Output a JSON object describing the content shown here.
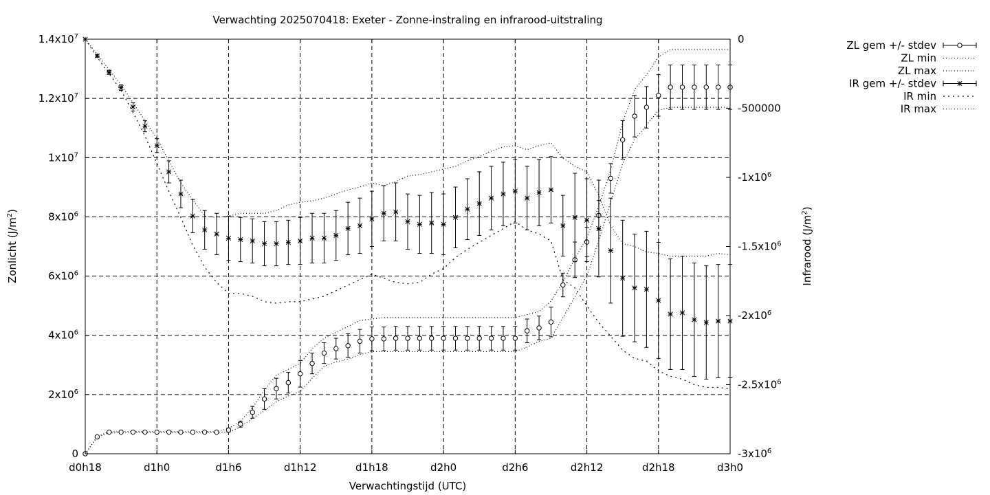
{
  "chart_data": {
    "type": "scatter",
    "title": "Verwachting 2025070418: Exeter - Zonne-instraling en infrarood-uitstraling",
    "xlabel": "Verwachtingstijd (UTC)",
    "ylabel": "Zonlicht (J/m²)",
    "ylabel_base": "Zonlicht (J/m",
    "ylabel_sup": "2",
    "ylabel_end": ")",
    "y2label": "Infrarood (J/m²)",
    "y2label_base": "Infrarood (J/m",
    "y2label_sup": "2",
    "y2label_end": ")",
    "x_unit": "hours since forecast start (d0h18)",
    "xlim": [
      18,
      72
    ],
    "ylim": [
      0,
      14000000
    ],
    "y2lim": [
      -3000000,
      0
    ],
    "grid": true,
    "legend_position": "outside top-right",
    "x_ticks": [
      {
        "value": 18,
        "label": "d0h18"
      },
      {
        "value": 24,
        "label": "d1h0"
      },
      {
        "value": 30,
        "label": "d1h6"
      },
      {
        "value": 36,
        "label": "d1h12"
      },
      {
        "value": 42,
        "label": "d1h18"
      },
      {
        "value": 48,
        "label": "d2h0"
      },
      {
        "value": 54,
        "label": "d2h6"
      },
      {
        "value": 60,
        "label": "d2h12"
      },
      {
        "value": 66,
        "label": "d2h18"
      },
      {
        "value": 72,
        "label": "d3h0"
      }
    ],
    "y_ticks": [
      {
        "value": 0,
        "base": "0",
        "exp": ""
      },
      {
        "value": 2000000,
        "base": "2x10",
        "exp": "6"
      },
      {
        "value": 4000000,
        "base": "4x10",
        "exp": "6"
      },
      {
        "value": 6000000,
        "base": "6x10",
        "exp": "6"
      },
      {
        "value": 8000000,
        "base": "8x10",
        "exp": "6"
      },
      {
        "value": 10000000,
        "base": "1x10",
        "exp": "7"
      },
      {
        "value": 12000000,
        "base": "1.2x10",
        "exp": "7"
      },
      {
        "value": 14000000,
        "base": "1.4x10",
        "exp": "7"
      }
    ],
    "y2_ticks": [
      {
        "value": 0,
        "base": "0",
        "exp": ""
      },
      {
        "value": -500000,
        "base": "-500000",
        "exp": ""
      },
      {
        "value": -1000000,
        "base": "-1x10",
        "exp": "6"
      },
      {
        "value": -1500000,
        "base": "-1.5x10",
        "exp": "6"
      },
      {
        "value": -2000000,
        "base": "-2x10",
        "exp": "6"
      },
      {
        "value": -2500000,
        "base": "-2.5x10",
        "exp": "6"
      },
      {
        "value": -3000000,
        "base": "-3x10",
        "exp": "6"
      }
    ],
    "legend": [
      {
        "label": "ZL gem +/- stdev",
        "style": "errorbar-circle"
      },
      {
        "label": "ZL min",
        "style": "dotted"
      },
      {
        "label": "ZL max",
        "style": "dotted"
      },
      {
        "label": "IR gem +/- stdev",
        "style": "errorbar-star"
      },
      {
        "label": "IR min",
        "style": "dotted-sparse"
      },
      {
        "label": "IR max",
        "style": "dotted"
      }
    ],
    "x": [
      18,
      19,
      20,
      21,
      22,
      23,
      24,
      25,
      26,
      27,
      28,
      29,
      30,
      31,
      32,
      33,
      34,
      35,
      36,
      37,
      38,
      39,
      40,
      41,
      42,
      43,
      44,
      45,
      46,
      47,
      48,
      49,
      50,
      51,
      52,
      53,
      54,
      55,
      56,
      57,
      58,
      59,
      60,
      61,
      62,
      63,
      64,
      65,
      66,
      67,
      68,
      69,
      70,
      71,
      72
    ],
    "series": [
      {
        "name": "ZL gem +/- stdev",
        "axis": "y",
        "marker": "circle",
        "values": [
          0,
          570000,
          730000,
          730000,
          730000,
          730000,
          730000,
          730000,
          730000,
          730000,
          730000,
          730000,
          800000,
          1000000,
          1400000,
          1850000,
          2200000,
          2400000,
          2700000,
          3050000,
          3400000,
          3550000,
          3650000,
          3800000,
          3880000,
          3880000,
          3900000,
          3900000,
          3900000,
          3900000,
          3900000,
          3900000,
          3900000,
          3900000,
          3900000,
          3900000,
          3900000,
          4150000,
          4250000,
          4450000,
          5700000,
          6550000,
          7150000,
          8050000,
          9300000,
          10600000,
          11400000,
          11700000,
          12100000,
          12380000,
          12380000,
          12380000,
          12380000,
          12380000,
          12380000
        ],
        "stdev": [
          0,
          20000,
          20000,
          20000,
          20000,
          20000,
          20000,
          20000,
          20000,
          20000,
          20000,
          20000,
          70000,
          100000,
          200000,
          350000,
          350000,
          350000,
          450000,
          350000,
          350000,
          350000,
          400000,
          400000,
          400000,
          400000,
          400000,
          400000,
          400000,
          400000,
          400000,
          400000,
          400000,
          400000,
          400000,
          400000,
          400000,
          400000,
          400000,
          500000,
          400000,
          600000,
          500000,
          500000,
          500000,
          650000,
          700000,
          700000,
          700000,
          750000,
          750000,
          750000,
          750000,
          750000,
          750000
        ]
      },
      {
        "name": "ZL min",
        "axis": "y",
        "style": "dotted",
        "values": [
          0,
          560000,
          710000,
          710000,
          710000,
          710000,
          710000,
          710000,
          710000,
          710000,
          710000,
          710000,
          730000,
          900000,
          1200000,
          1450000,
          1750000,
          1950000,
          2100000,
          2550000,
          2950000,
          3100000,
          3200000,
          3350000,
          3450000,
          3450000,
          3450000,
          3450000,
          3450000,
          3450000,
          3450000,
          3450000,
          3450000,
          3450000,
          3450000,
          3450000,
          3450000,
          3600000,
          3800000,
          3900000,
          4600000,
          5300000,
          6000000,
          7200000,
          8500000,
          9800000,
          10600000,
          11100000,
          11600000,
          11700000,
          11700000,
          11700000,
          11700000,
          11700000,
          11700000
        ]
      },
      {
        "name": "ZL max",
        "axis": "y",
        "style": "dotted",
        "values": [
          0,
          580000,
          750000,
          750000,
          750000,
          750000,
          750000,
          750000,
          750000,
          750000,
          750000,
          750000,
          850000,
          1100000,
          1550000,
          2150000,
          2650000,
          2850000,
          3050000,
          3550000,
          3900000,
          4100000,
          4300000,
          4500000,
          4550000,
          4600000,
          4600000,
          4600000,
          4600000,
          4600000,
          4600000,
          4600000,
          4600000,
          4600000,
          4600000,
          4600000,
          4600000,
          4700000,
          4800000,
          5150000,
          5800000,
          6600000,
          7300000,
          8350000,
          9600000,
          11200000,
          12300000,
          12800000,
          13400000,
          13650000,
          13650000,
          13650000,
          13650000,
          13650000,
          13650000
        ]
      },
      {
        "name": "IR gem +/- stdev",
        "axis": "y2",
        "marker": "star",
        "values": [
          0,
          -120000,
          -240000,
          -350000,
          -490000,
          -630000,
          -770000,
          -960000,
          -1120000,
          -1280000,
          -1380000,
          -1410000,
          -1440000,
          -1450000,
          -1460000,
          -1480000,
          -1480000,
          -1470000,
          -1460000,
          -1440000,
          -1440000,
          -1420000,
          -1370000,
          -1350000,
          -1300000,
          -1260000,
          -1250000,
          -1320000,
          -1340000,
          -1330000,
          -1340000,
          -1290000,
          -1230000,
          -1190000,
          -1150000,
          -1120000,
          -1100000,
          -1150000,
          -1110000,
          -1090000,
          -1350000,
          -1290000,
          -1310000,
          -1370000,
          -1530000,
          -1730000,
          -1800000,
          -1810000,
          -1890000,
          -1990000,
          -1980000,
          -2030000,
          -2050000,
          -2040000,
          -2040000
        ],
        "stdev": [
          0,
          10000,
          15000,
          20000,
          30000,
          40000,
          50000,
          80000,
          100000,
          120000,
          140000,
          150000,
          160000,
          160000,
          160000,
          160000,
          160000,
          160000,
          170000,
          180000,
          180000,
          180000,
          190000,
          200000,
          200000,
          200000,
          210000,
          200000,
          210000,
          220000,
          220000,
          220000,
          220000,
          230000,
          230000,
          230000,
          230000,
          230000,
          240000,
          240000,
          220000,
          320000,
          300000,
          350000,
          380000,
          420000,
          390000,
          420000,
          420000,
          400000,
          410000,
          410000,
          410000,
          410000,
          410000
        ]
      },
      {
        "name": "IR min",
        "axis": "y2",
        "style": "dotted-sparse",
        "values": [
          0,
          -130000,
          -250000,
          -370000,
          -530000,
          -700000,
          -900000,
          -1100000,
          -1290000,
          -1490000,
          -1650000,
          -1760000,
          -1840000,
          -1840000,
          -1860000,
          -1900000,
          -1910000,
          -1900000,
          -1900000,
          -1880000,
          -1860000,
          -1820000,
          -1780000,
          -1740000,
          -1700000,
          -1730000,
          -1760000,
          -1770000,
          -1760000,
          -1700000,
          -1660000,
          -1580000,
          -1520000,
          -1470000,
          -1420000,
          -1370000,
          -1320000,
          -1380000,
          -1410000,
          -1460000,
          -1740000,
          -1800000,
          -1930000,
          -2050000,
          -2150000,
          -2250000,
          -2310000,
          -2330000,
          -2400000,
          -2440000,
          -2460000,
          -2500000,
          -2520000,
          -2520000,
          -2530000
        ]
      },
      {
        "name": "IR max",
        "axis": "y2",
        "style": "dotted",
        "values": [
          0,
          -110000,
          -220000,
          -330000,
          -460000,
          -590000,
          -720000,
          -880000,
          -1040000,
          -1160000,
          -1280000,
          -1290000,
          -1280000,
          -1260000,
          -1260000,
          -1260000,
          -1240000,
          -1200000,
          -1180000,
          -1170000,
          -1150000,
          -1120000,
          -1090000,
          -1070000,
          -1040000,
          -1060000,
          -1030000,
          -990000,
          -980000,
          -960000,
          -940000,
          -920000,
          -880000,
          -850000,
          -810000,
          -780000,
          -770000,
          -800000,
          -770000,
          -750000,
          -860000,
          -920000,
          -960000,
          -1130000,
          -1350000,
          -1480000,
          -1500000,
          -1540000,
          -1550000,
          -1570000,
          -1570000,
          -1570000,
          -1570000,
          -1550000,
          -1560000
        ]
      }
    ]
  }
}
